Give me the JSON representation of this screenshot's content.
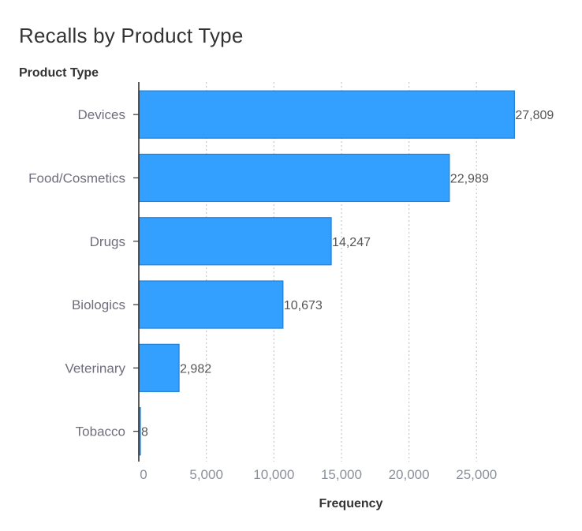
{
  "chart_data": {
    "type": "bar",
    "orientation": "horizontal",
    "title": "Recalls by Product Type",
    "ylabel": "Product Type",
    "xlabel": "Frequency",
    "categories": [
      "Devices",
      "Food/Cosmetics",
      "Drugs",
      "Biologics",
      "Veterinary",
      "Tobacco"
    ],
    "values": [
      27809,
      22989,
      14247,
      10673,
      2982,
      8
    ],
    "value_labels": [
      "27,809",
      "22,989",
      "14,247",
      "10,673",
      "2,982",
      "8"
    ],
    "ticks": [
      0,
      5000,
      10000,
      15000,
      20000,
      25000
    ],
    "tick_labels": [
      "0",
      "5,000",
      "10,000",
      "15,000",
      "20,000",
      "25,000"
    ],
    "xlim": [
      0,
      30000
    ],
    "grid": "vertical-dotted",
    "colors": {
      "bar_fill": "#33a0ff",
      "bar_stroke": "#1f7fd6",
      "axis": "#333333",
      "grid": "#c8c8c8"
    }
  }
}
